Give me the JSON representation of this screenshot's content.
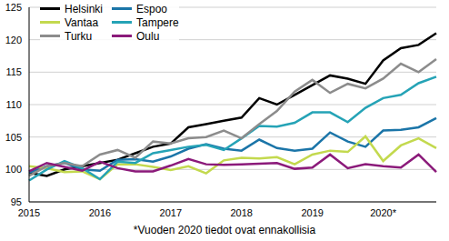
{
  "chart_data": {
    "type": "line",
    "note": "*Vuoden 2020 tiedot ovat ennakollisia",
    "categories": [
      "2015",
      null,
      null,
      null,
      "2016",
      null,
      null,
      null,
      "2017",
      null,
      null,
      null,
      "2018",
      null,
      null,
      null,
      "2019",
      null,
      null,
      null,
      "2020*",
      null,
      null,
      null
    ],
    "series": [
      {
        "name": "Helsinki",
        "color": "#000000",
        "values": [
          99.5,
          99,
          100,
          100.5,
          101,
          101.5,
          102.5,
          103.5,
          104,
          106.5,
          107,
          107.5,
          108,
          111,
          110,
          111.5,
          113,
          114.5,
          114,
          113.2,
          116.8,
          118.7,
          119.2,
          121
        ]
      },
      {
        "name": "Espoo",
        "color": "#1b75a8",
        "values": [
          99.5,
          100.5,
          101,
          100,
          99.8,
          101.5,
          101.6,
          101.2,
          102,
          103.2,
          103.9,
          103.2,
          102.9,
          104.6,
          103.3,
          102.9,
          103.2,
          105.7,
          104.3,
          103.5,
          106,
          106.1,
          106.5,
          107.9
        ]
      },
      {
        "name": "Vantaa",
        "color": "#c3d94e",
        "values": [
          100.5,
          100.2,
          99.6,
          99.7,
          98.5,
          100.8,
          100.8,
          100.4,
          99.9,
          100.5,
          99.4,
          101.4,
          101.8,
          101.7,
          101.9,
          100.8,
          102.3,
          102.9,
          102.7,
          105.1,
          101.3,
          103.7,
          104.8,
          103.3
        ]
      },
      {
        "name": "Tampere",
        "color": "#25a3b6",
        "values": [
          98.3,
          100,
          101.3,
          100.2,
          98.5,
          101.2,
          101,
          102.5,
          103,
          103.5,
          103.8,
          103,
          104.8,
          106.7,
          106.6,
          107.2,
          108.8,
          108.8,
          107.3,
          109.5,
          111,
          111.5,
          113.3,
          114.3
        ]
      },
      {
        "name": "Turku",
        "color": "#8c8c8c",
        "values": [
          99,
          100.5,
          101,
          100.5,
          102.3,
          103,
          101.8,
          104.3,
          104,
          104.8,
          105,
          106,
          104.8,
          107,
          109,
          112,
          113.8,
          111.8,
          113.2,
          112.5,
          114,
          116.3,
          115,
          117
        ]
      },
      {
        "name": "Oulu",
        "color": "#8b1a7a",
        "values": [
          99.7,
          101,
          100.4,
          99.8,
          101.2,
          100.2,
          99.7,
          99.7,
          100.6,
          101.6,
          100.8,
          100.7,
          100.8,
          100.9,
          101,
          100.1,
          100.3,
          102.3,
          100.2,
          100.8,
          100.5,
          100.3,
          102.3,
          99.6
        ]
      }
    ],
    "ylim": [
      95,
      125
    ],
    "yticks": [
      95,
      100,
      105,
      110,
      115,
      120,
      125
    ],
    "grid": true,
    "legend": "top-left"
  }
}
